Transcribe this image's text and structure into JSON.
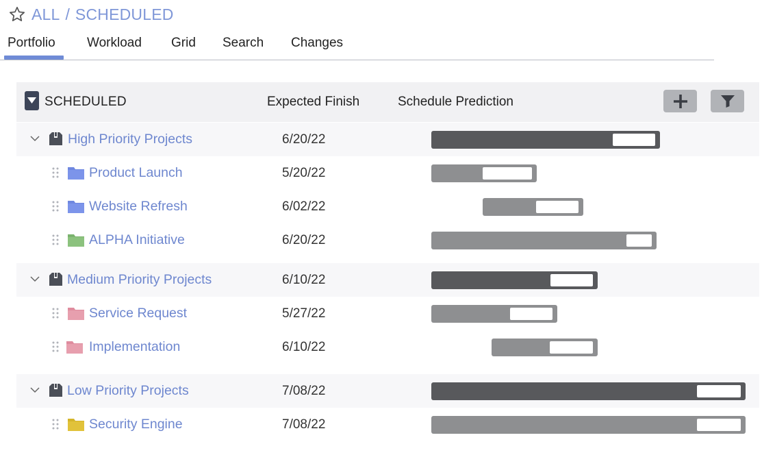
{
  "breadcrumb": {
    "root": "ALL",
    "separator": "/",
    "current": "SCHEDULED"
  },
  "tabs": [
    "Portfolio",
    "Workload",
    "Grid",
    "Search",
    "Changes"
  ],
  "active_tab": "Portfolio",
  "grid": {
    "header": {
      "title": "SCHEDULED",
      "col_finish": "Expected Finish",
      "col_prediction": "Schedule Prediction"
    },
    "colors": {
      "link": "#6e87cf",
      "group_bar": "#58595c",
      "item_bar": "#8e8f91"
    },
    "rows": [
      {
        "name": "High Priority Projects",
        "type": "group",
        "icon": "box-icon",
        "finish": "6/20/22"
      },
      {
        "name": "Product Launch",
        "type": "project",
        "icon": "folder-blue-icon",
        "finish": "5/20/22"
      },
      {
        "name": "Website Refresh",
        "type": "project",
        "icon": "folder-blue-icon",
        "finish": "6/02/22"
      },
      {
        "name": "ALPHA Initiative",
        "type": "project",
        "icon": "folder-green-icon",
        "finish": "6/20/22"
      },
      {
        "name": "Medium Priority Projects",
        "type": "group",
        "icon": "box-icon",
        "finish": "6/10/22"
      },
      {
        "name": "Service Request",
        "type": "project",
        "icon": "folder-pink-icon",
        "finish": "5/27/22"
      },
      {
        "name": "Implementation",
        "type": "project",
        "icon": "folder-pink-icon",
        "finish": "6/10/22"
      },
      {
        "name": "Low Priority Projects",
        "type": "group",
        "icon": "box-icon",
        "finish": "7/08/22"
      },
      {
        "name": "Security Engine",
        "type": "project",
        "icon": "folder-yellow-icon",
        "finish": "7/08/22"
      }
    ]
  }
}
